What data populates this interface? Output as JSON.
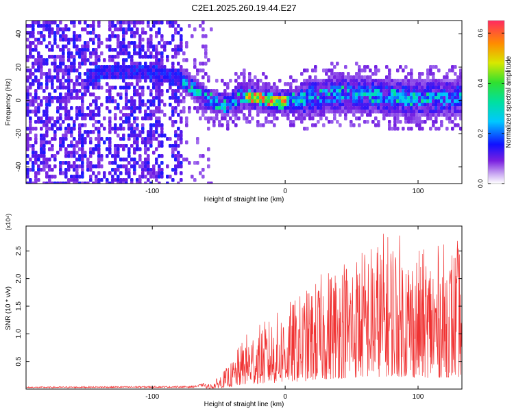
{
  "title": "C2E1.2025.260.19.44.E27",
  "chart_data": [
    {
      "type": "heatmap",
      "name": "spectrogram",
      "xlabel": "Height of straight line (km)",
      "ylabel": "Frequency (Hz)",
      "xlim": [
        -195,
        133
      ],
      "ylim": [
        -50,
        48
      ],
      "xticks": [
        -100,
        0,
        100
      ],
      "yticks": [
        -40,
        -20,
        0,
        20,
        40
      ],
      "colorbar": {
        "label": "Normalized spectral amplitude",
        "range": [
          0,
          0.65
        ],
        "ticks": [
          0.0,
          0.2,
          0.4,
          0.6
        ]
      },
      "band_center": [
        [
          -195,
          0
        ],
        [
          -140,
          18
        ],
        [
          -100,
          18
        ],
        [
          -80,
          14
        ],
        [
          -60,
          2
        ],
        [
          -45,
          -2
        ],
        [
          -35,
          4
        ],
        [
          -20,
          2
        ],
        [
          0,
          0
        ],
        [
          20,
          3
        ],
        [
          40,
          5
        ],
        [
          60,
          4
        ],
        [
          80,
          3
        ],
        [
          100,
          2
        ],
        [
          133,
          3
        ]
      ],
      "peak_region": {
        "x_range": [
          -30,
          0
        ],
        "freq_hz": 2,
        "amplitude": 0.65
      }
    },
    {
      "type": "line",
      "name": "snr",
      "xlabel": "Height of straight line (km)",
      "ylabel": "SNR (10 * v/v)",
      "multiplier": "(x10⁴)",
      "xlim": [
        -195,
        133
      ],
      "ylim": [
        0,
        2.95
      ],
      "xticks": [
        -100,
        0,
        100
      ],
      "yticks": [
        0.5,
        1.0,
        1.5,
        2.0,
        2.5
      ],
      "color": "#f03232",
      "envelope": [
        [
          -195,
          0.03
        ],
        [
          -70,
          0.04
        ],
        [
          -55,
          0.1
        ],
        [
          -40,
          0.5
        ],
        [
          -30,
          1.0
        ],
        [
          -10,
          1.3
        ],
        [
          0,
          1.5
        ],
        [
          20,
          1.9
        ],
        [
          40,
          2.4
        ],
        [
          60,
          2.6
        ],
        [
          80,
          2.9
        ],
        [
          100,
          2.5
        ],
        [
          133,
          2.7
        ]
      ]
    }
  ]
}
